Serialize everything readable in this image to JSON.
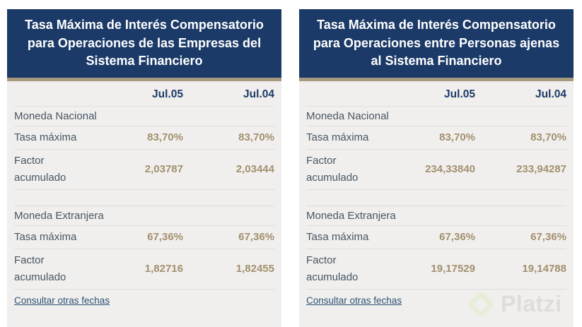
{
  "colors": {
    "header_bg": "#1b3a68",
    "header_text": "#ffffff",
    "accent_border": "#a69a7e",
    "body_bg": "#f0efed",
    "row_border": "#dddddc",
    "label_text": "#475664",
    "value_text": "#a3906f",
    "column_header_text": "#1b3a68",
    "link_text": "#2e5377",
    "watermark_text": "#dedddb",
    "watermark_logo": "#e6eed8"
  },
  "tables": [
    {
      "title": "Tasa Máxima de Interés Compensatorio para Operaciones de las Empresas del Sistema Financiero",
      "columns": [
        "Jul.05",
        "Jul.04"
      ],
      "sections": [
        {
          "name": "Moneda Nacional",
          "rows": [
            {
              "label": "Tasa máxima",
              "values": [
                "83,70%",
                "83,70%"
              ]
            },
            {
              "label": "Factor acumulado",
              "values": [
                "2,03787",
                "2,03444"
              ]
            }
          ]
        },
        {
          "name": "Moneda Extranjera",
          "rows": [
            {
              "label": "Tasa máxima",
              "values": [
                "67,36%",
                "67,36%"
              ]
            },
            {
              "label": "Factor acumulado",
              "values": [
                "1,82716",
                "1,82455"
              ]
            }
          ]
        }
      ],
      "link": "Consultar otras fechas"
    },
    {
      "title": "Tasa Máxima de Interés Compensatorio para Operaciones entre Personas ajenas al Sistema Financiero",
      "columns": [
        "Jul.05",
        "Jul.04"
      ],
      "sections": [
        {
          "name": "Moneda Nacional",
          "rows": [
            {
              "label": "Tasa máxima",
              "values": [
                "83,70%",
                "83,70%"
              ]
            },
            {
              "label": "Factor acumulado",
              "values": [
                "234,33840",
                "233,94287"
              ]
            }
          ]
        },
        {
          "name": "Moneda Extranjera",
          "rows": [
            {
              "label": "Tasa máxima",
              "values": [
                "67,36%",
                "67,36%"
              ]
            },
            {
              "label": "Factor acumulado",
              "values": [
                "19,17529",
                "19,14788"
              ]
            }
          ]
        }
      ],
      "link": "Consultar otras fechas"
    }
  ],
  "watermark": {
    "text": "Platzi"
  }
}
